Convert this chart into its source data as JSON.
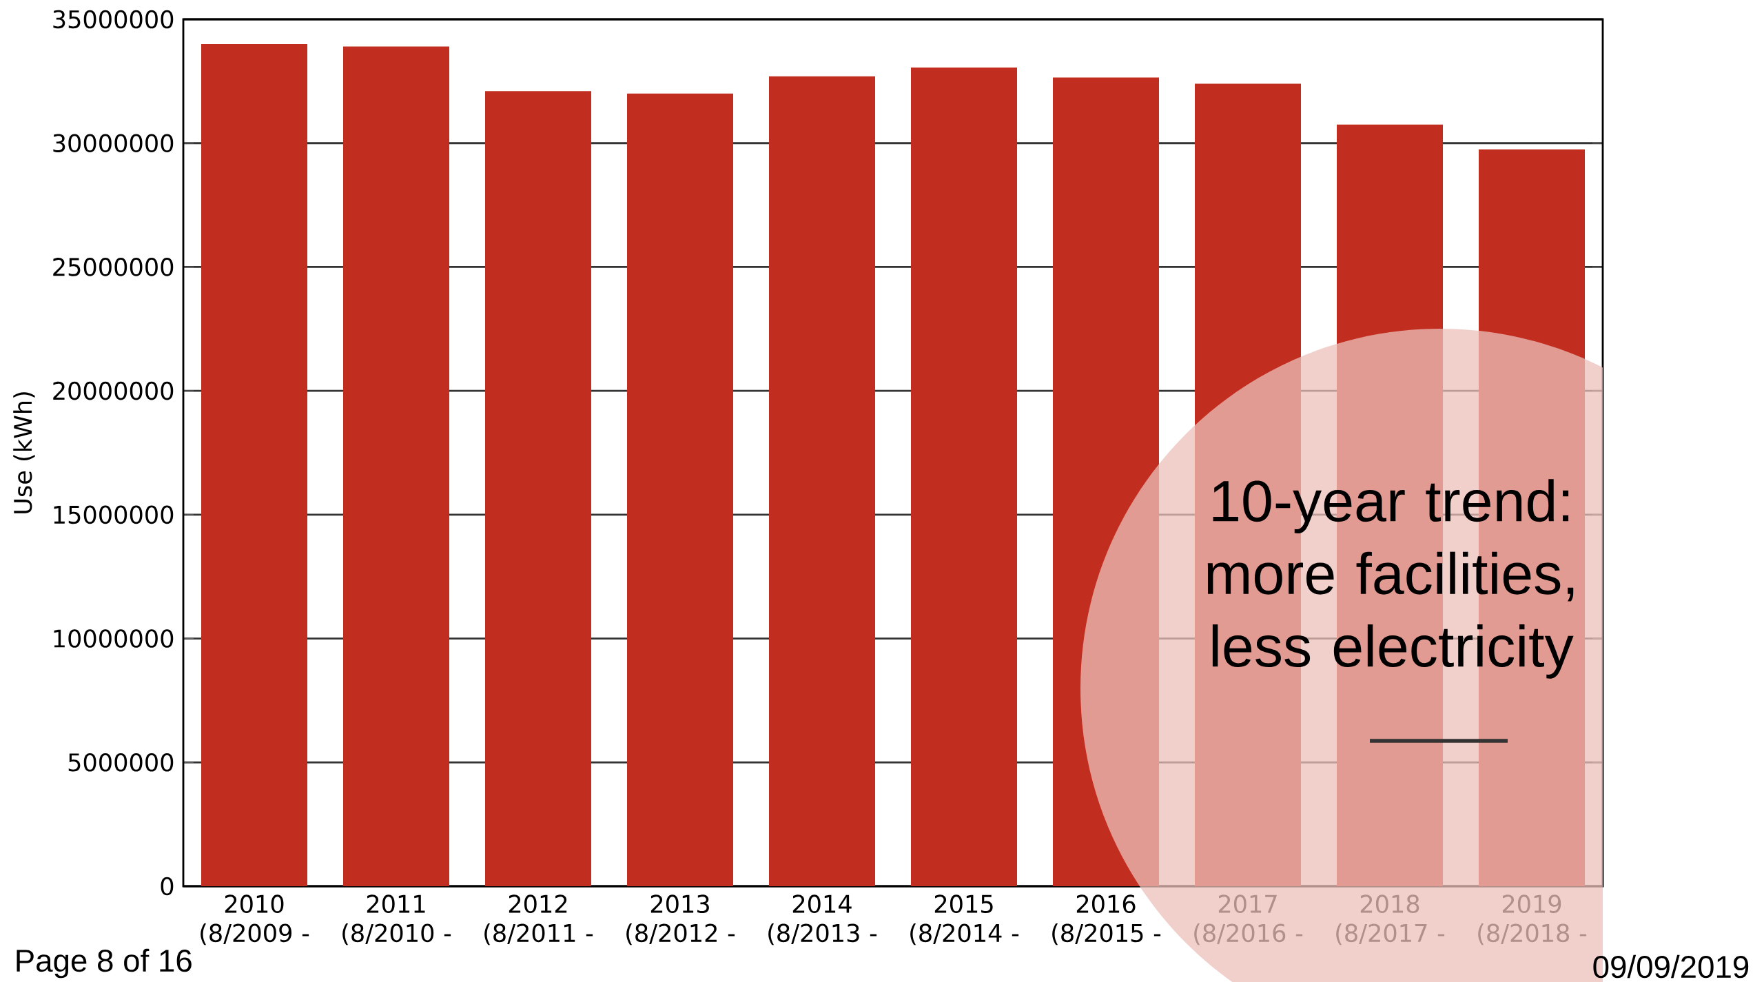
{
  "chart_data": {
    "type": "bar",
    "categories": [
      "2010 (8/2009 -",
      "2011 (8/2010 -",
      "2012 (8/2011 -",
      "2013 (8/2012 -",
      "2014 (8/2013 -",
      "2015 (8/2014 -",
      "2016 (8/2015 -",
      "2017 (8/2016 -",
      "2018 (8/2017 -",
      "2019 (8/2018 -"
    ],
    "values": [
      34000000,
      33900000,
      32100000,
      32000000,
      32700000,
      33050000,
      32650000,
      32400000,
      30750000,
      29750000
    ],
    "color": "#c12d1e",
    "ylabel": "Use (kWh)",
    "ylim": [
      0,
      35000000
    ],
    "yticks": [
      0,
      5000000,
      10000000,
      15000000,
      20000000,
      25000000,
      30000000,
      35000000
    ],
    "grid": "y",
    "annotations": [
      "10-year trend: more facilities, less electricity",
      "Page 8 of 16",
      "09/09/2019"
    ]
  }
}
